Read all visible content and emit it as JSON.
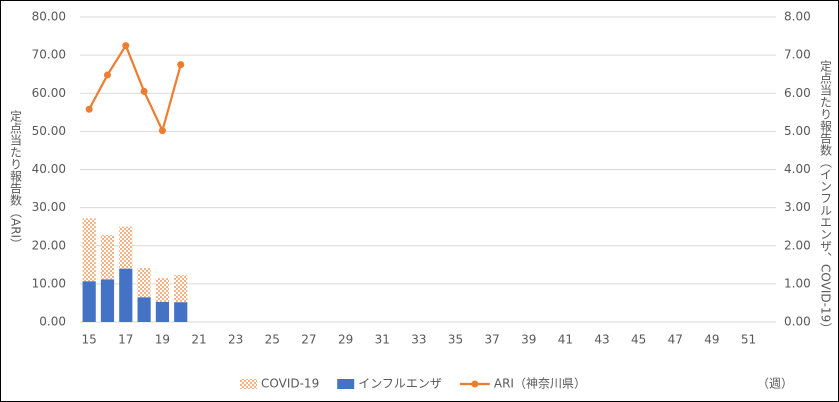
{
  "chart_data": {
    "type": "bar",
    "categories": [
      15,
      null,
      17,
      null,
      19,
      null,
      21,
      null,
      23,
      null,
      25,
      null,
      27,
      null,
      29,
      null,
      31,
      null,
      33,
      null,
      35,
      null,
      37,
      null,
      39,
      null,
      41,
      null,
      43,
      null,
      45,
      null,
      47,
      null,
      49,
      null,
      51,
      null
    ],
    "series": [
      {
        "name": "COVID-19",
        "type": "bar",
        "axis": "y2",
        "color": "#f4b183",
        "values": [
          1.65,
          1.16,
          1.1,
          0.77,
          0.62,
          0.71,
          null,
          null,
          null,
          null,
          null,
          null,
          null,
          null,
          null,
          null,
          null,
          null,
          null,
          null,
          null,
          null,
          null,
          null,
          null,
          null,
          null,
          null,
          null,
          null,
          null,
          null,
          null,
          null,
          null,
          null,
          null,
          null
        ]
      },
      {
        "name": "インフルエンザ",
        "type": "bar",
        "axis": "y2",
        "color": "#4472c4",
        "values": [
          1.07,
          1.12,
          1.4,
          0.65,
          0.53,
          0.52,
          null,
          null,
          null,
          null,
          null,
          null,
          null,
          null,
          null,
          null,
          null,
          null,
          null,
          null,
          null,
          null,
          null,
          null,
          null,
          null,
          null,
          null,
          null,
          null,
          null,
          null,
          null,
          null,
          null,
          null,
          null,
          null
        ]
      },
      {
        "name": "ARI（神奈川県）",
        "type": "line",
        "color": "#ed7d31",
        "values": [
          55.8,
          64.8,
          72.5,
          60.5,
          50.2,
          67.5,
          null,
          null,
          null,
          null,
          null,
          null,
          null,
          null,
          null,
          null,
          null,
          null,
          null,
          null,
          null,
          null,
          null,
          null,
          null,
          null,
          null,
          null,
          null,
          null,
          null,
          null,
          null,
          null,
          null,
          null,
          null,
          null
        ]
      }
    ],
    "y_label": "定点当たり報告数（ARI）",
    "y2_label": "定点当たり報告数（インフルエンザ、COVID-19）",
    "x_label": "（週）",
    "ylim": [
      0,
      80
    ],
    "yticks": [
      {
        "value": 0,
        "label": "0.00"
      },
      {
        "value": 10,
        "label": "10.00"
      },
      {
        "value": 20,
        "label": "20.00"
      },
      {
        "value": 30,
        "label": "30.00"
      },
      {
        "value": 40,
        "label": "40.00"
      },
      {
        "value": 50,
        "label": "50.00"
      },
      {
        "value": 60,
        "label": "60.00"
      },
      {
        "value": 70,
        "label": "70.00"
      },
      {
        "value": 80,
        "label": "80.00"
      }
    ],
    "y2lim": [
      0,
      8
    ],
    "y2ticks": [
      {
        "value": 0,
        "label": "0.00"
      },
      {
        "value": 1,
        "label": "1.00"
      },
      {
        "value": 2,
        "label": "2.00"
      },
      {
        "value": 3,
        "label": "3.00"
      },
      {
        "value": 4,
        "label": "4.00"
      },
      {
        "value": 5,
        "label": "5.00"
      },
      {
        "value": 6,
        "label": "6.00"
      },
      {
        "value": 7,
        "label": "7.00"
      },
      {
        "value": 8,
        "label": "8.00"
      }
    ],
    "grid": true,
    "legend": "bottom"
  }
}
